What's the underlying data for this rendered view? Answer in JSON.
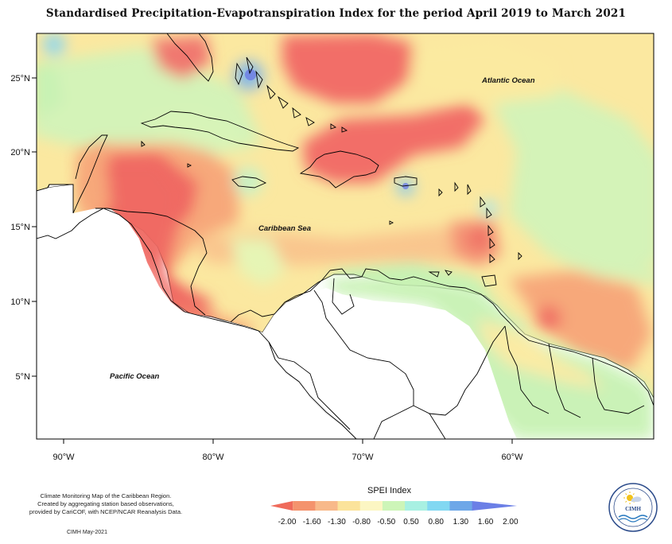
{
  "title": "Standardised Precipitation-Evapotranspiration Index for the period April 2019 to March 2021",
  "map": {
    "lat_labels": [
      "25°N",
      "20°N",
      "15°N",
      "10°N",
      "5°N"
    ],
    "lon_labels": [
      "90°W",
      "80°W",
      "70°W",
      "60°W"
    ],
    "regions": {
      "atlantic": "Atlantic Ocean",
      "caribbean": "Caribbean Sea",
      "pacific": "Pacific Ocean"
    }
  },
  "legend": {
    "title": "SPEI Index",
    "labels": [
      "-2.00",
      "-1.60",
      "-1.30",
      "-0.80",
      "-0.50",
      "0.50",
      "0.80",
      "1.30",
      "1.60",
      "2.00"
    ],
    "colors": [
      "#ef6a5a",
      "#f4936d",
      "#f8b98a",
      "#fbe39b",
      "#fcf6c3",
      "#cdf5b8",
      "#a8f0e2",
      "#82d8f2",
      "#6ea7e8",
      "#6b7fe6"
    ]
  },
  "footer": {
    "lines": [
      "Climate Monitoring Map of the Caribbean Region.",
      "Created by aggregating station based observations,",
      "provided by CariCOF, with NCEP/NCAR Reanalysis Data."
    ],
    "date": "CIMH May-2021"
  },
  "logo": {
    "text": "CIMH",
    "icon": "sun-icon"
  }
}
